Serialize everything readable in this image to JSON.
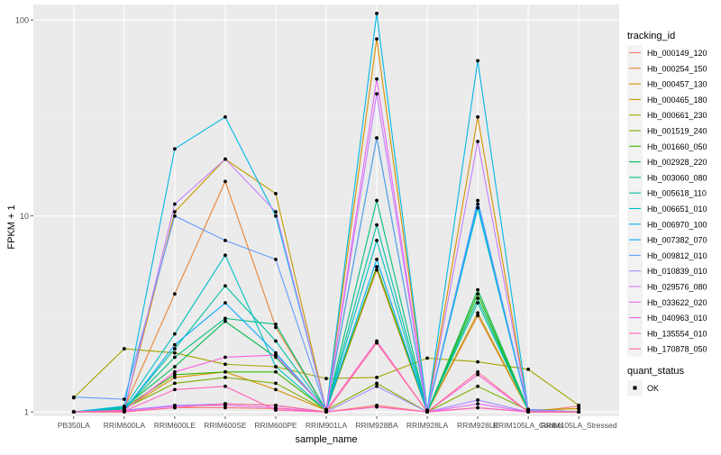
{
  "chart_data": {
    "type": "line",
    "xlabel": "sample_name",
    "ylabel": "FPKM + 1",
    "y_scale": "log10",
    "ylim": [
      0.95,
      120
    ],
    "y_ticks": [
      1,
      10,
      100
    ],
    "y_tick_labels": [
      "1",
      "10",
      "100"
    ],
    "grid": true,
    "legend_position": "right",
    "categories": [
      "PB350LA",
      "RRIM600LA",
      "RRIM600LE",
      "RRIM600SE",
      "RRIM600PE",
      "RRIM901LA",
      "RRIM928BA",
      "RRIM928LA",
      "RRIM928LE",
      "RRIM105LA_Control",
      "RRIM105LA_Stressed"
    ],
    "legend_title": "tracking_id",
    "series": [
      {
        "name": "Hb_000149_120",
        "color": "#F8766D",
        "values": [
          1.0,
          1.0,
          1.05,
          1.05,
          1.04,
          1.0,
          1.08,
          1.0,
          1.05,
          1.0,
          1.07
        ]
      },
      {
        "name": "Hb_000254_150",
        "color": "#EA8331",
        "values": [
          1.0,
          1.05,
          4.0,
          15.0,
          2.7,
          1.02,
          5.3,
          1.0,
          3.1,
          1.02,
          1.0
        ]
      },
      {
        "name": "Hb_000457_130",
        "color": "#D89000",
        "values": [
          1.0,
          1.03,
          1.5,
          1.6,
          1.3,
          1.02,
          80.0,
          1.02,
          32.0,
          1.02,
          1.04
        ]
      },
      {
        "name": "Hb_000465_180",
        "color": "#C09B00",
        "values": [
          1.0,
          1.02,
          10.5,
          19.5,
          13.0,
          1.02,
          5.5,
          1.0,
          3.2,
          1.02,
          1.04
        ]
      },
      {
        "name": "Hb_000661_230",
        "color": "#A3A500",
        "values": [
          1.18,
          2.1,
          2.0,
          1.75,
          1.7,
          1.48,
          1.5,
          1.88,
          1.8,
          1.65,
          1.08
        ]
      },
      {
        "name": "Hb_001519_240",
        "color": "#7CAE00",
        "values": [
          1.0,
          1.04,
          1.4,
          1.5,
          1.4,
          1.02,
          1.4,
          1.0,
          1.35,
          1.02,
          1.0
        ]
      },
      {
        "name": "Hb_001660_050",
        "color": "#39B600",
        "values": [
          1.0,
          1.05,
          1.55,
          1.6,
          1.6,
          1.02,
          5.5,
          1.0,
          4.0,
          1.02,
          1.0
        ]
      },
      {
        "name": "Hb_002928_220",
        "color": "#00BB4E",
        "values": [
          1.0,
          1.06,
          1.7,
          2.9,
          1.9,
          1.03,
          25.0,
          1.0,
          4.2,
          1.03,
          1.0
        ]
      },
      {
        "name": "Hb_003060_080",
        "color": "#00BF7D",
        "values": [
          1.0,
          1.04,
          1.9,
          3.0,
          2.8,
          1.02,
          12.0,
          1.0,
          3.8,
          1.02,
          1.0
        ]
      },
      {
        "name": "Hb_005618_110",
        "color": "#00C1A3",
        "values": [
          1.0,
          1.03,
          2.1,
          4.4,
          2.3,
          1.02,
          9.0,
          1.0,
          3.6,
          1.02,
          1.0
        ]
      },
      {
        "name": "Hb_006651_010",
        "color": "#00BFC4",
        "values": [
          1.0,
          1.05,
          2.5,
          6.3,
          1.7,
          1.02,
          7.5,
          1.0,
          11.0,
          1.02,
          1.0
        ]
      },
      {
        "name": "Hb_006970_100",
        "color": "#00B8E5",
        "values": [
          1.0,
          1.07,
          22.0,
          32.0,
          10.0,
          1.02,
          108.0,
          1.02,
          62.0,
          1.03,
          1.0
        ]
      },
      {
        "name": "Hb_007382_070",
        "color": "#00ABFD",
        "values": [
          1.0,
          1.02,
          2.2,
          3.6,
          2.0,
          1.02,
          6.0,
          1.0,
          11.5,
          1.02,
          1.0
        ]
      },
      {
        "name": "Hb_009812_010",
        "color": "#619CFF",
        "values": [
          1.19,
          1.16,
          10.0,
          7.5,
          6.0,
          1.02,
          25.0,
          1.0,
          12.0,
          1.03,
          1.0
        ]
      },
      {
        "name": "Hb_010839_010",
        "color": "#A58AFF",
        "values": [
          1.0,
          1.02,
          1.08,
          1.1,
          1.08,
          1.0,
          1.35,
          1.0,
          1.15,
          1.0,
          1.0
        ]
      },
      {
        "name": "Hb_029576_080",
        "color": "#C77CFF",
        "values": [
          1.0,
          1.02,
          11.5,
          19.5,
          10.5,
          1.02,
          42.0,
          1.0,
          24.0,
          1.02,
          1.0
        ]
      },
      {
        "name": "Hb_033622_020",
        "color": "#E76BF3",
        "values": [
          1.0,
          1.01,
          1.07,
          1.08,
          1.05,
          1.0,
          50.0,
          1.0,
          1.1,
          1.0,
          1.0
        ]
      },
      {
        "name": "Hb_040963_010",
        "color": "#FA62DB",
        "values": [
          1.0,
          1.02,
          1.6,
          1.9,
          1.95,
          1.02,
          2.3,
          1.0,
          1.55,
          1.0,
          1.0
        ]
      },
      {
        "name": "Hb_135554_010",
        "color": "#FF62BC",
        "values": [
          1.0,
          1.01,
          1.3,
          1.35,
          1.02,
          1.0,
          1.06,
          1.0,
          1.05,
          1.0,
          1.0
        ]
      },
      {
        "name": "Hb_170878_050",
        "color": "#FF6C91",
        "values": [
          1.0,
          1.0,
          1.05,
          1.1,
          1.08,
          1.0,
          2.25,
          1.0,
          1.6,
          1.0,
          1.0
        ]
      }
    ],
    "legend2_title": "quant_status",
    "legend2_entries": [
      "OK"
    ]
  }
}
